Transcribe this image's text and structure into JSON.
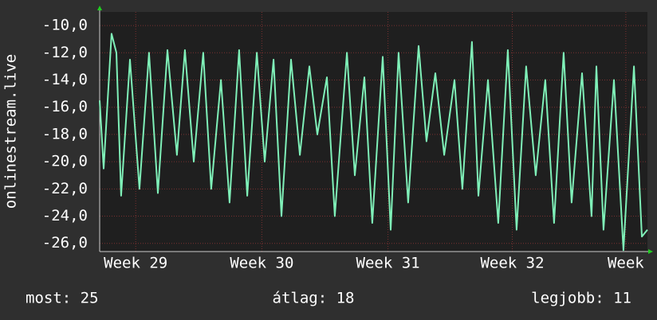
{
  "chart_data": {
    "type": "line",
    "ylabel": "onlinestream.live",
    "x": [
      0,
      0.22,
      0.66,
      0.93,
      1.19,
      1.68,
      2.21,
      2.74,
      3.23,
      3.76,
      4.29,
      4.73,
      5.22,
      5.75,
      6.19,
      6.73,
      7.21,
      7.74,
      8.19,
      8.72,
      9.16,
      9.65,
      10.09,
      10.62,
      11.11,
      11.64,
      12.08,
      12.61,
      13.05,
      13.72,
      14.16,
      14.69,
      15.13,
      15.71,
      16.15,
      16.59,
      17.12,
      17.7,
      18.14,
      18.63,
      19.12,
      19.69,
      20.13,
      20.66,
      21.02,
      21.55,
      22.12,
      22.65,
      23.14,
      23.67,
      24.2,
      24.73,
      25.22,
      25.75,
      26.19,
      26.77,
      27.3,
      27.57,
      27.96,
      28.54,
      29.07,
      29.65,
      30.09,
      30.4
    ],
    "values": [
      -15.5,
      -20.5,
      -10.6,
      -12,
      -22.5,
      -12.5,
      -22,
      -12,
      -22.3,
      -11.8,
      -19.5,
      -11.8,
      -20,
      -12,
      -22,
      -14,
      -23,
      -11.8,
      -22.5,
      -12,
      -20,
      -12.5,
      -24,
      -12.5,
      -19.5,
      -13,
      -18,
      -13.8,
      -24,
      -12,
      -21,
      -13.8,
      -24.5,
      -12.3,
      -25,
      -12,
      -23,
      -11.5,
      -18.5,
      -13.5,
      -19.5,
      -14,
      -22,
      -11.2,
      -22.5,
      -14,
      -24.5,
      -11.8,
      -25,
      -13,
      -21,
      -14,
      -24.5,
      -12,
      -23,
      -13.5,
      -24,
      -13,
      -25,
      -14,
      -26.5,
      -13,
      -25.5,
      -25
    ],
    "color": "#7ff0b8",
    "xlim": [
      0,
      30.4
    ],
    "xticks": [
      {
        "value": 2,
        "label": "Week 29"
      },
      {
        "value": 9,
        "label": "Week 30"
      },
      {
        "value": 16,
        "label": "Week 31"
      },
      {
        "value": 22.9,
        "label": "Week 32"
      },
      {
        "value": 29.2,
        "label": "Week"
      }
    ],
    "ylim": [
      -26.6,
      -9.0
    ],
    "yticks": [
      {
        "value": -10,
        "label": "-10,0"
      },
      {
        "value": -12,
        "label": "-12,0"
      },
      {
        "value": -14,
        "label": "-14,0"
      },
      {
        "value": -16,
        "label": "-16,0"
      },
      {
        "value": -18,
        "label": "-18,0"
      },
      {
        "value": -20,
        "label": "-20,0"
      },
      {
        "value": -22,
        "label": "-22,0"
      },
      {
        "value": -24,
        "label": "-24,0"
      },
      {
        "value": -26,
        "label": "-26,0"
      }
    ],
    "grid": true,
    "footer": [
      "most: 25",
      "átlag: 18",
      "legjobb: 11"
    ]
  }
}
